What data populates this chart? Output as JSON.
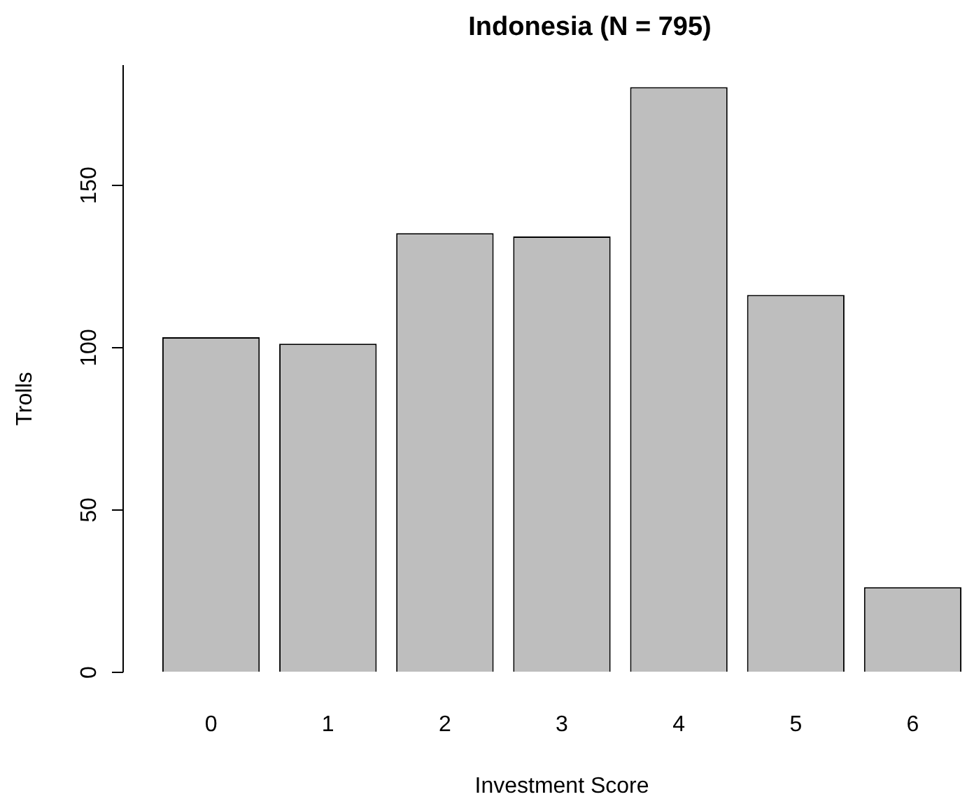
{
  "chart_data": {
    "type": "bar",
    "title": "Indonesia (N = 795)",
    "xlabel": "Investment Score",
    "ylabel": "Trolls",
    "categories": [
      "0",
      "1",
      "2",
      "3",
      "4",
      "5",
      "6"
    ],
    "values": [
      103,
      101,
      135,
      134,
      180,
      116,
      26
    ],
    "color": "#bebebe",
    "ylim": [
      0,
      187
    ],
    "yticks": [
      0,
      50,
      100,
      150
    ],
    "grid": false,
    "legend": false
  }
}
